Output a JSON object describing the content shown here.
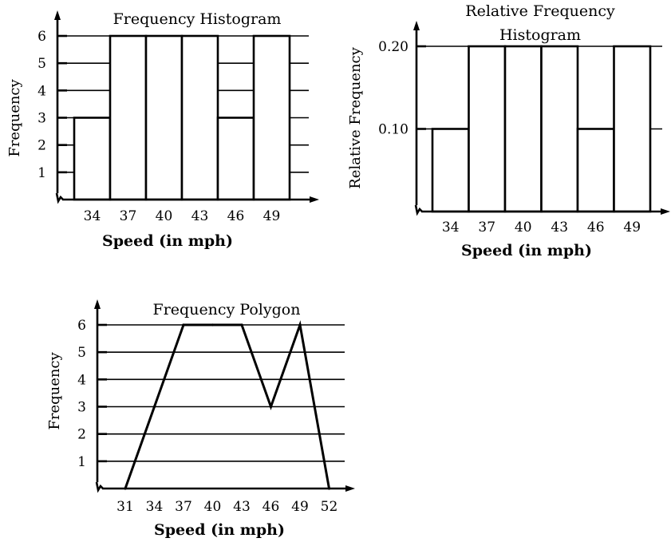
{
  "chart_data": [
    {
      "type": "bar",
      "title": "Frequency Histogram",
      "xlabel": "Speed (in mph)",
      "ylabel": "Frequency",
      "x_ticks": [
        "34",
        "37",
        "40",
        "43",
        "46",
        "49"
      ],
      "y_ticks": [
        "1",
        "2",
        "3",
        "4",
        "5",
        "6"
      ],
      "class_midpoints": [
        34,
        37,
        40,
        43,
        46,
        49
      ],
      "values": [
        3,
        6,
        6,
        6,
        3,
        6
      ],
      "ylim": [
        0,
        6
      ],
      "grid": "horizontal lines",
      "axis_break": true
    },
    {
      "type": "bar",
      "title_lines": [
        "Relative Frequency",
        "Histogram"
      ],
      "xlabel": "Speed (in mph)",
      "ylabel": "Relative Frequency",
      "x_ticks": [
        "34",
        "37",
        "40",
        "43",
        "46",
        "49"
      ],
      "y_ticks": [
        "0.10",
        "0.20"
      ],
      "class_midpoints": [
        34,
        37,
        40,
        43,
        46,
        49
      ],
      "values": [
        0.1,
        0.2,
        0.2,
        0.2,
        0.1,
        0.2
      ],
      "ylim": [
        0,
        0.2
      ],
      "grid": "horizontal lines",
      "axis_break": true
    },
    {
      "type": "line",
      "title": "Frequency Polygon",
      "xlabel": "Speed (in mph)",
      "ylabel": "Frequency",
      "x_ticks": [
        "31",
        "34",
        "37",
        "40",
        "43",
        "46",
        "49",
        "52"
      ],
      "y_ticks": [
        "1",
        "2",
        "3",
        "4",
        "5",
        "6"
      ],
      "x": [
        31,
        34,
        37,
        40,
        43,
        46,
        49,
        52
      ],
      "y": [
        0,
        3,
        6,
        6,
        6,
        3,
        6,
        0
      ],
      "ylim": [
        0,
        6
      ],
      "grid": "horizontal lines",
      "axis_break": true
    }
  ]
}
